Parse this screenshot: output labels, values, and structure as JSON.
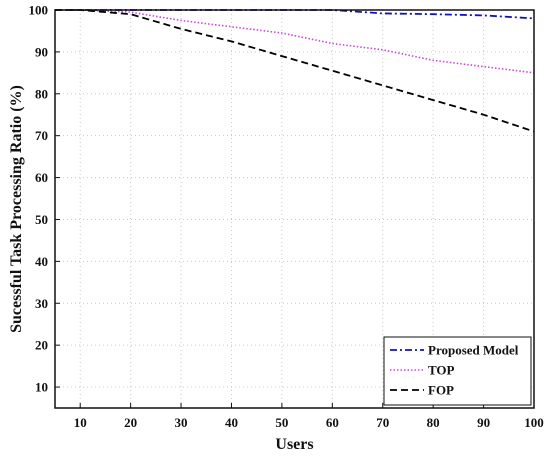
{
  "chart_data": {
    "type": "line",
    "title": "",
    "xlabel": "Users",
    "ylabel": "Sucessful Task Processing Ratio (%)",
    "xlim": [
      5,
      100
    ],
    "ylim": [
      5,
      100
    ],
    "xticks": [
      10,
      20,
      30,
      40,
      50,
      60,
      70,
      80,
      90,
      100
    ],
    "yticks": [
      10,
      20,
      30,
      40,
      50,
      60,
      70,
      80,
      90,
      100
    ],
    "grid": true,
    "legend_position": "bottom-right",
    "series": [
      {
        "name": "Proposed Model",
        "color": "#1010c8",
        "style": "dash-dot",
        "x": [
          5,
          10,
          20,
          30,
          40,
          50,
          60,
          70,
          80,
          90,
          100
        ],
        "y": [
          100,
          100,
          100,
          100,
          100,
          100,
          100,
          99.2,
          99,
          98.7,
          98
        ]
      },
      {
        "name": "TOP",
        "color": "#cc44dd",
        "style": "dotted",
        "x": [
          5,
          10,
          20,
          30,
          40,
          50,
          60,
          70,
          80,
          90,
          100
        ],
        "y": [
          100,
          100,
          99.5,
          97.5,
          96,
          94.5,
          92,
          90.5,
          88,
          86.5,
          85
        ]
      },
      {
        "name": "FOP",
        "color": "#000000",
        "style": "dashed",
        "x": [
          5,
          10,
          20,
          30,
          40,
          50,
          60,
          70,
          80,
          90,
          100
        ],
        "y": [
          100,
          100,
          99,
          95.5,
          92.5,
          89,
          85.5,
          82,
          78.5,
          75,
          71
        ]
      }
    ]
  }
}
